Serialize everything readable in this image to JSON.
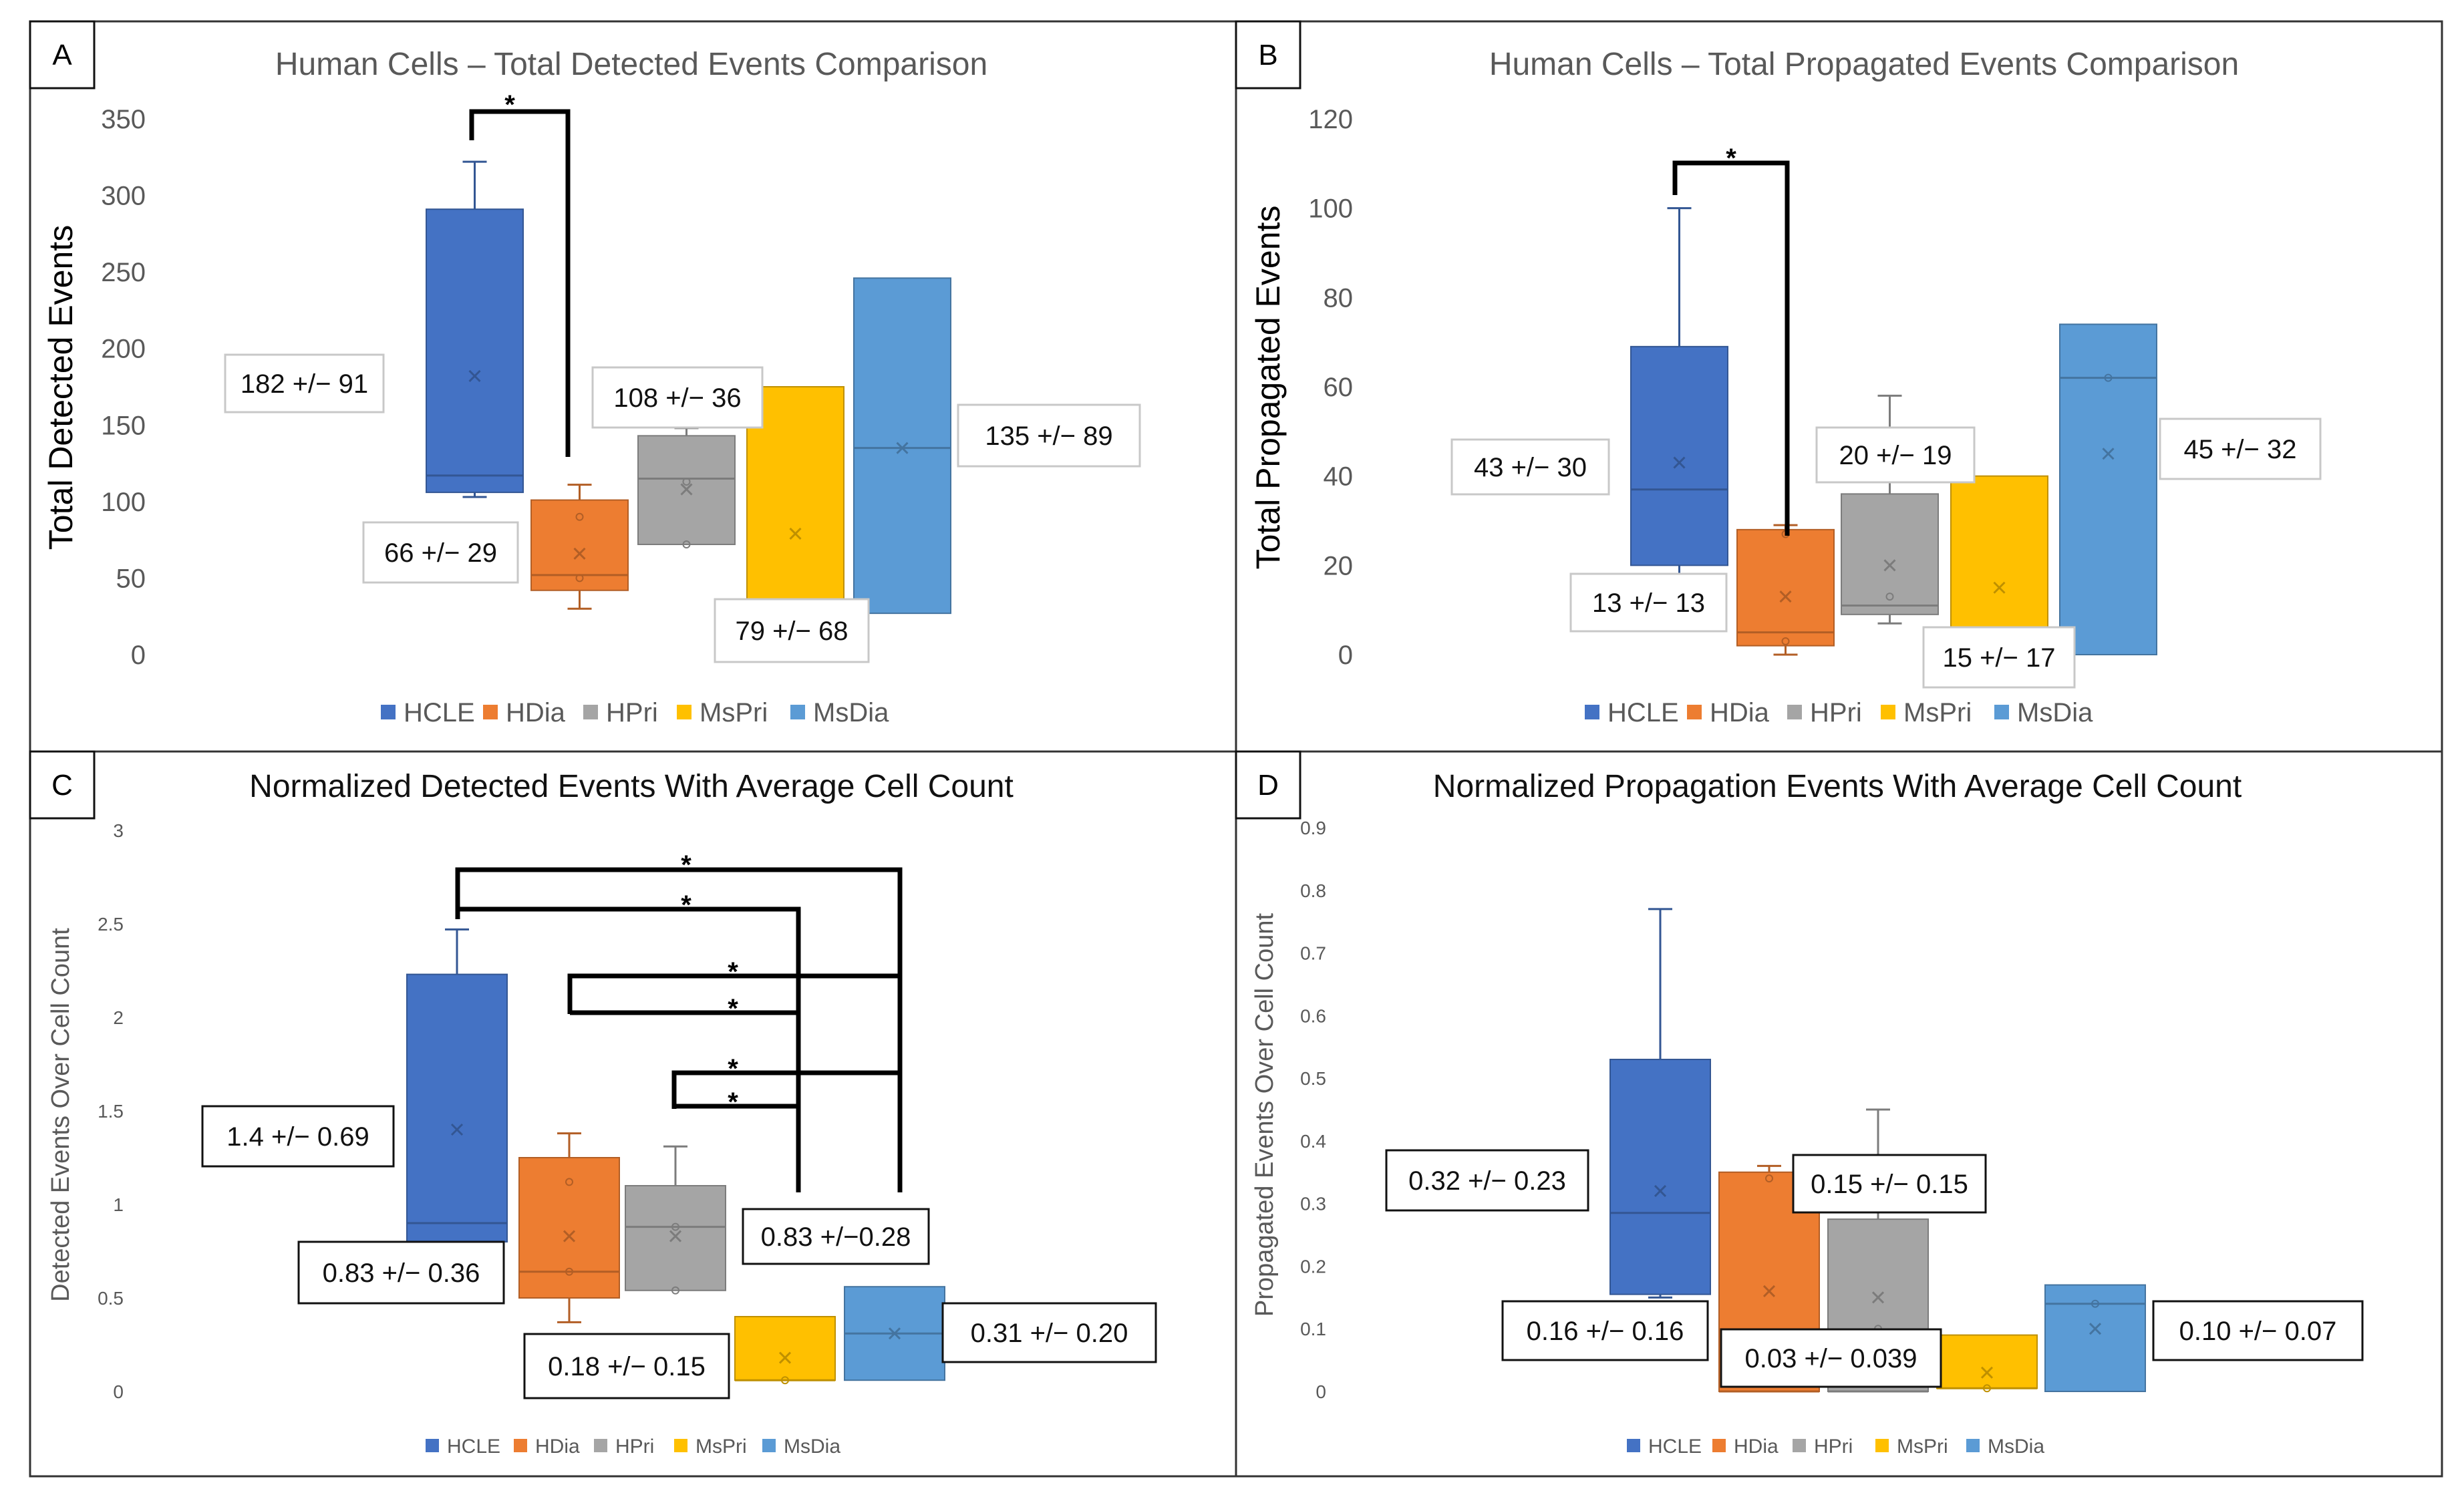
{
  "figure": {
    "legend": [
      "HCLE",
      "HDia",
      "HPri",
      "MsPri",
      "MsDia"
    ],
    "colors": {
      "HCLE": "#4472C4",
      "HDia": "#ED7D31",
      "HPri": "#A5A5A5",
      "MsPri": "#FFC000",
      "MsDia": "#5B9BD5"
    }
  },
  "chart_data": [
    {
      "panel": "A",
      "type": "box",
      "title": "Human Cells – Total Detected Events Comparison",
      "ylabel": "Total Detected Events",
      "ylim": [
        0,
        350
      ],
      "yticks": [
        0,
        50,
        100,
        150,
        200,
        250,
        300,
        350
      ],
      "categories": [
        "HCLE",
        "HDia",
        "HPri",
        "MsPri",
        "MsDia"
      ],
      "boxes": [
        {
          "name": "HCLE",
          "min": 103,
          "q1": 106,
          "median": 117,
          "q3": 291,
          "max": 322,
          "mean": 182,
          "points": []
        },
        {
          "name": "HDia",
          "min": 30,
          "q1": 42,
          "median": 52,
          "q3": 101,
          "max": 111,
          "mean": 66,
          "points": [
            50,
            90
          ]
        },
        {
          "name": "HPri",
          "min": 72,
          "q1": 72,
          "median": 115,
          "q3": 143,
          "max": 148,
          "mean": 108,
          "points": [
            72,
            113
          ]
        },
        {
          "name": "MsPri",
          "min": 35,
          "q1": 35,
          "median": 35,
          "q3": 175,
          "max": 175,
          "mean": 79,
          "points": []
        },
        {
          "name": "MsDia",
          "min": 27,
          "q1": 27,
          "median": 135,
          "q3": 246,
          "max": 246,
          "mean": 135,
          "points": []
        }
      ],
      "annotations": [
        "182 +/− 91",
        "66 +/− 29",
        "108 +/− 36",
        "79 +/− 68",
        "135 +/− 89"
      ],
      "significance": [
        {
          "from": "HCLE",
          "to": "HDia",
          "label": "*"
        }
      ]
    },
    {
      "panel": "B",
      "type": "box",
      "title": "Human Cells – Total Propagated Events Comparison",
      "ylabel": "Total Propagated Events",
      "ylim": [
        0,
        120
      ],
      "yticks": [
        0,
        20,
        40,
        60,
        80,
        100,
        120
      ],
      "categories": [
        "HCLE",
        "HDia",
        "HPri",
        "MsPri",
        "MsDia"
      ],
      "boxes": [
        {
          "name": "HCLE",
          "min": 18,
          "q1": 20,
          "median": 37,
          "q3": 69,
          "max": 100,
          "mean": 43,
          "points": []
        },
        {
          "name": "HDia",
          "min": 0,
          "q1": 2,
          "median": 5,
          "q3": 28,
          "max": 29,
          "mean": 13,
          "points": [
            3,
            27
          ]
        },
        {
          "name": "HPri",
          "min": 7,
          "q1": 9,
          "median": 11,
          "q3": 36,
          "max": 58,
          "mean": 20,
          "points": [
            13
          ]
        },
        {
          "name": "MsPri",
          "min": 2,
          "q1": 2,
          "median": 2,
          "q3": 40,
          "max": 40,
          "mean": 15,
          "points": []
        },
        {
          "name": "MsDia",
          "min": 0,
          "q1": 0,
          "median": 62,
          "q3": 74,
          "max": 74,
          "mean": 45,
          "points": [
            62
          ]
        }
      ],
      "annotations": [
        "43 +/− 30",
        "13 +/− 13",
        "20 +/− 19",
        "15 +/− 17",
        "45 +/− 32"
      ],
      "significance": [
        {
          "from": "HCLE",
          "to": "HDia",
          "label": "*"
        }
      ]
    },
    {
      "panel": "C",
      "type": "box",
      "title": "Normalized Detected Events With Average Cell Count",
      "ylabel": "Detected Events Over Cell Count",
      "ylim": [
        0,
        3
      ],
      "yticks": [
        0,
        0.5,
        1,
        1.5,
        2,
        2.5,
        3
      ],
      "categories": [
        "HCLE",
        "HDia",
        "HPri",
        "MsPri",
        "MsDia"
      ],
      "boxes": [
        {
          "name": "HCLE",
          "min": 0.78,
          "q1": 0.8,
          "median": 0.9,
          "q3": 2.23,
          "max": 2.47,
          "mean": 1.4,
          "points": []
        },
        {
          "name": "HDia",
          "min": 0.37,
          "q1": 0.5,
          "median": 0.64,
          "q3": 1.25,
          "max": 1.38,
          "mean": 0.83,
          "points": [
            1.12,
            0.64
          ]
        },
        {
          "name": "HPri",
          "min": 0.54,
          "q1": 0.54,
          "median": 0.88,
          "q3": 1.1,
          "max": 1.31,
          "mean": 0.83,
          "points": [
            0.54,
            0.88
          ]
        },
        {
          "name": "MsPri",
          "min": 0.06,
          "q1": 0.06,
          "median": 0.06,
          "q3": 0.4,
          "max": 0.4,
          "mean": 0.18,
          "points": [
            0.06
          ]
        },
        {
          "name": "MsDia",
          "min": 0.06,
          "q1": 0.06,
          "median": 0.31,
          "q3": 0.56,
          "max": 0.56,
          "mean": 0.31,
          "points": []
        }
      ],
      "annotations": [
        "1.4 +/− 0.69",
        "0.83 +/− 0.36",
        "0.83 +/−0.28",
        "0.18 +/− 0.15",
        "0.31 +/− 0.20"
      ],
      "significance": [
        {
          "from": "HCLE",
          "to": "MsDia",
          "label": "*"
        },
        {
          "from": "HCLE",
          "to": "MsPri",
          "label": "*"
        },
        {
          "from": "HDia",
          "to": "MsDia",
          "label": "*"
        },
        {
          "from": "HDia",
          "to": "MsPri",
          "label": "*"
        },
        {
          "from": "HPri",
          "to": "MsDia",
          "label": "*"
        },
        {
          "from": "HPri",
          "to": "MsPri",
          "label": "*"
        }
      ]
    },
    {
      "panel": "D",
      "type": "box",
      "title": "Normalized Propagation Events With Average Cell Count",
      "ylabel": "Propagated Events Over Cell Count",
      "ylim": [
        0,
        0.9
      ],
      "yticks": [
        0,
        0.1,
        0.2,
        0.3,
        0.4,
        0.5,
        0.6,
        0.7,
        0.8,
        0.9
      ],
      "categories": [
        "HCLE",
        "HDia",
        "HPri",
        "MsPri",
        "MsDia"
      ],
      "boxes": [
        {
          "name": "HCLE",
          "min": 0.15,
          "q1": 0.155,
          "median": 0.285,
          "q3": 0.53,
          "max": 0.77,
          "mean": 0.32,
          "points": []
        },
        {
          "name": "HDia",
          "min": 0,
          "q1": 0,
          "median": 0,
          "q3": 0.35,
          "max": 0.36,
          "mean": 0.16,
          "points": [
            0.34
          ]
        },
        {
          "name": "HPri",
          "min": 0,
          "q1": 0,
          "median": 0,
          "q3": 0.275,
          "max": 0.45,
          "mean": 0.15,
          "points": [
            0.1
          ]
        },
        {
          "name": "MsPri",
          "min": 0.005,
          "q1": 0.005,
          "median": 0.005,
          "q3": 0.09,
          "max": 0.09,
          "mean": 0.03,
          "points": [
            0.005
          ]
        },
        {
          "name": "MsDia",
          "min": 0,
          "q1": 0,
          "median": 0.14,
          "q3": 0.17,
          "max": 0.17,
          "mean": 0.1,
          "points": [
            0.14
          ]
        }
      ],
      "annotations": [
        "0.32 +/− 0.23",
        "0.16 +/− 0.16",
        "0.15 +/− 0.15",
        "0.03 +/− 0.039",
        "0.10 +/− 0.07"
      ],
      "significance": []
    }
  ]
}
